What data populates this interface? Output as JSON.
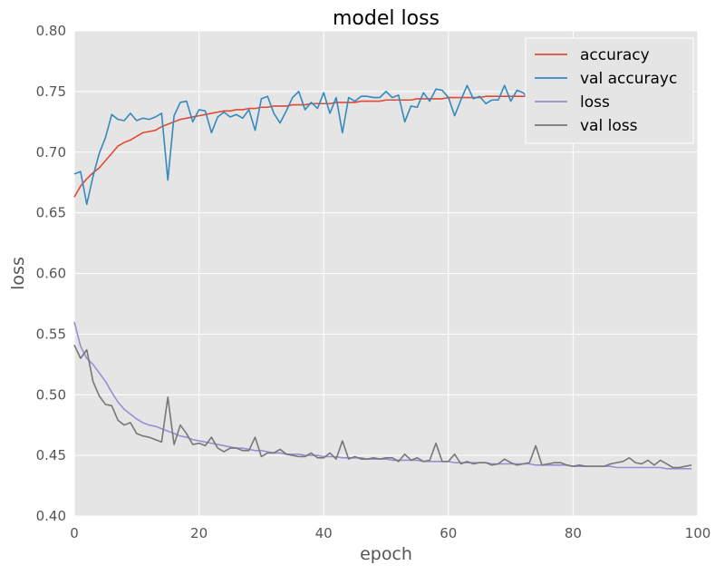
{
  "chart_data": {
    "type": "line",
    "title": "model loss",
    "xlabel": "epoch",
    "ylabel": "loss",
    "xlim": [
      0,
      100
    ],
    "ylim": [
      0.4,
      0.8
    ],
    "xticks": [
      "0",
      "20",
      "40",
      "60",
      "80",
      "100"
    ],
    "xtick_values": [
      0,
      20,
      40,
      60,
      80,
      100
    ],
    "yticks": [
      "0.40",
      "0.45",
      "0.50",
      "0.55",
      "0.60",
      "0.65",
      "0.70",
      "0.75",
      "0.80"
    ],
    "ytick_values": [
      0.4,
      0.45,
      0.5,
      0.55,
      0.6,
      0.65,
      0.7,
      0.75,
      0.8
    ],
    "grid": true,
    "legend_position": "top-right",
    "series": [
      {
        "name": "accuracy",
        "color": "#e24a33",
        "values": [
          0.663,
          0.672,
          0.678,
          0.683,
          0.687,
          0.693,
          0.699,
          0.705,
          0.708,
          0.71,
          0.713,
          0.716,
          0.717,
          0.718,
          0.721,
          0.723,
          0.725,
          0.727,
          0.728,
          0.729,
          0.73,
          0.731,
          0.732,
          0.733,
          0.734,
          0.734,
          0.735,
          0.735,
          0.736,
          0.736,
          0.737,
          0.737,
          0.738,
          0.738,
          0.738,
          0.739,
          0.739,
          0.739,
          0.74,
          0.74,
          0.74,
          0.74,
          0.741,
          0.741,
          0.741,
          0.741,
          0.742,
          0.742,
          0.742,
          0.742,
          0.743,
          0.743,
          0.743,
          0.743,
          0.743,
          0.744,
          0.744,
          0.744,
          0.744,
          0.744,
          0.745,
          0.745,
          0.745,
          0.745,
          0.745,
          0.745,
          0.746,
          0.746,
          0.746,
          0.746,
          0.746,
          0.746,
          0.746,
          0.746,
          0.747,
          0.747,
          0.747,
          0.747,
          0.747,
          0.747,
          0.748,
          0.748,
          0.748,
          0.748,
          0.748,
          0.748,
          0.748,
          0.748,
          0.748,
          0.748,
          0.749,
          0.749,
          0.749,
          0.749,
          0.749,
          0.749,
          0.749,
          0.749,
          0.749,
          0.75
        ]
      },
      {
        "name": "val accurayc",
        "color": "#348abd",
        "values": [
          0.682,
          0.684,
          0.657,
          0.68,
          0.699,
          0.712,
          0.731,
          0.727,
          0.726,
          0.732,
          0.726,
          0.728,
          0.727,
          0.729,
          0.732,
          0.677,
          0.73,
          0.741,
          0.742,
          0.725,
          0.735,
          0.734,
          0.716,
          0.729,
          0.733,
          0.729,
          0.731,
          0.728,
          0.735,
          0.718,
          0.744,
          0.746,
          0.732,
          0.724,
          0.734,
          0.745,
          0.75,
          0.735,
          0.741,
          0.736,
          0.749,
          0.732,
          0.745,
          0.716,
          0.745,
          0.742,
          0.746,
          0.746,
          0.745,
          0.745,
          0.75,
          0.745,
          0.747,
          0.725,
          0.738,
          0.737,
          0.749,
          0.742,
          0.752,
          0.751,
          0.745,
          0.73,
          0.743,
          0.755,
          0.744,
          0.746,
          0.74,
          0.743,
          0.743,
          0.755,
          0.742,
          0.751,
          0.749,
          0.743,
          0.74,
          0.745,
          0.742,
          0.745,
          0.749,
          0.746,
          0.745,
          0.742,
          0.745,
          0.748,
          0.745,
          0.743,
          0.74,
          0.747,
          0.746,
          0.744,
          0.746,
          0.744,
          0.742,
          0.746,
          0.743,
          0.744,
          0.742,
          0.746,
          0.749,
          0.741
        ]
      },
      {
        "name": "loss",
        "color": "#988ed5",
        "values": [
          0.56,
          0.54,
          0.53,
          0.525,
          0.518,
          0.511,
          0.502,
          0.494,
          0.488,
          0.484,
          0.48,
          0.477,
          0.475,
          0.474,
          0.472,
          0.47,
          0.468,
          0.466,
          0.465,
          0.463,
          0.462,
          0.461,
          0.46,
          0.459,
          0.458,
          0.457,
          0.456,
          0.456,
          0.455,
          0.454,
          0.454,
          0.453,
          0.452,
          0.452,
          0.451,
          0.451,
          0.451,
          0.45,
          0.45,
          0.45,
          0.449,
          0.449,
          0.449,
          0.448,
          0.448,
          0.448,
          0.448,
          0.447,
          0.447,
          0.447,
          0.447,
          0.446,
          0.446,
          0.446,
          0.446,
          0.446,
          0.445,
          0.445,
          0.445,
          0.445,
          0.445,
          0.444,
          0.444,
          0.444,
          0.444,
          0.444,
          0.444,
          0.443,
          0.443,
          0.443,
          0.443,
          0.443,
          0.443,
          0.443,
          0.442,
          0.442,
          0.442,
          0.442,
          0.442,
          0.442,
          0.441,
          0.441,
          0.441,
          0.441,
          0.441,
          0.441,
          0.441,
          0.44,
          0.44,
          0.44,
          0.44,
          0.44,
          0.44,
          0.44,
          0.44,
          0.439,
          0.439,
          0.439,
          0.439,
          0.439
        ]
      },
      {
        "name": "val loss",
        "color": "#777777",
        "values": [
          0.541,
          0.53,
          0.537,
          0.511,
          0.499,
          0.492,
          0.491,
          0.479,
          0.475,
          0.477,
          0.468,
          0.466,
          0.465,
          0.463,
          0.461,
          0.498,
          0.459,
          0.475,
          0.468,
          0.459,
          0.46,
          0.458,
          0.465,
          0.456,
          0.453,
          0.456,
          0.456,
          0.454,
          0.454,
          0.465,
          0.449,
          0.452,
          0.452,
          0.455,
          0.451,
          0.45,
          0.449,
          0.449,
          0.452,
          0.448,
          0.448,
          0.452,
          0.447,
          0.462,
          0.447,
          0.449,
          0.447,
          0.447,
          0.448,
          0.447,
          0.448,
          0.448,
          0.445,
          0.451,
          0.446,
          0.448,
          0.445,
          0.446,
          0.46,
          0.445,
          0.445,
          0.451,
          0.443,
          0.445,
          0.443,
          0.444,
          0.444,
          0.442,
          0.443,
          0.447,
          0.444,
          0.442,
          0.443,
          0.444,
          0.458,
          0.442,
          0.443,
          0.444,
          0.444,
          0.442,
          0.441,
          0.442,
          0.441,
          0.441,
          0.441,
          0.441,
          0.443,
          0.444,
          0.445,
          0.448,
          0.444,
          0.443,
          0.446,
          0.442,
          0.446,
          0.443,
          0.44,
          0.44,
          0.441,
          0.442
        ]
      }
    ]
  }
}
